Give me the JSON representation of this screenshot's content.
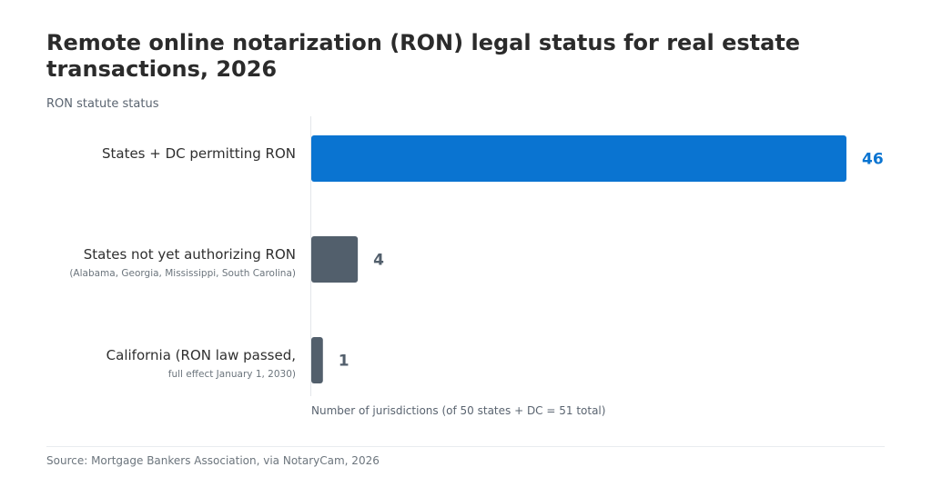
{
  "title": "Remote online notarization (RON) legal status for real estate transactions, 2026",
  "subtitle": "RON statute status",
  "source": "Source: Mortgage Bankers Association, via NotaryCam, 2026",
  "colors": {
    "primary": "#0a74d1",
    "secondary": "#525f6c",
    "axis": "#e3e6ea"
  },
  "chart_data": {
    "type": "bar",
    "orientation": "horizontal",
    "categories": [
      "States + DC permitting RON",
      "States not yet authorizing RON",
      "California (RON law passed,"
    ],
    "category_sublabels": [
      "",
      "(Alabama, Georgia, Mississippi, South Carolina)",
      "full effect January 1, 2030)"
    ],
    "values": [
      46,
      4,
      1
    ],
    "value_labels": [
      "46",
      "4",
      "1"
    ],
    "bar_colors": [
      "#0a74d1",
      "#525f6c",
      "#525f6c"
    ],
    "xlabel": "Number of jurisdictions (of 50 states + DC = 51 total)",
    "xlim": [
      0,
      46
    ],
    "grid": false,
    "legend": "none"
  }
}
